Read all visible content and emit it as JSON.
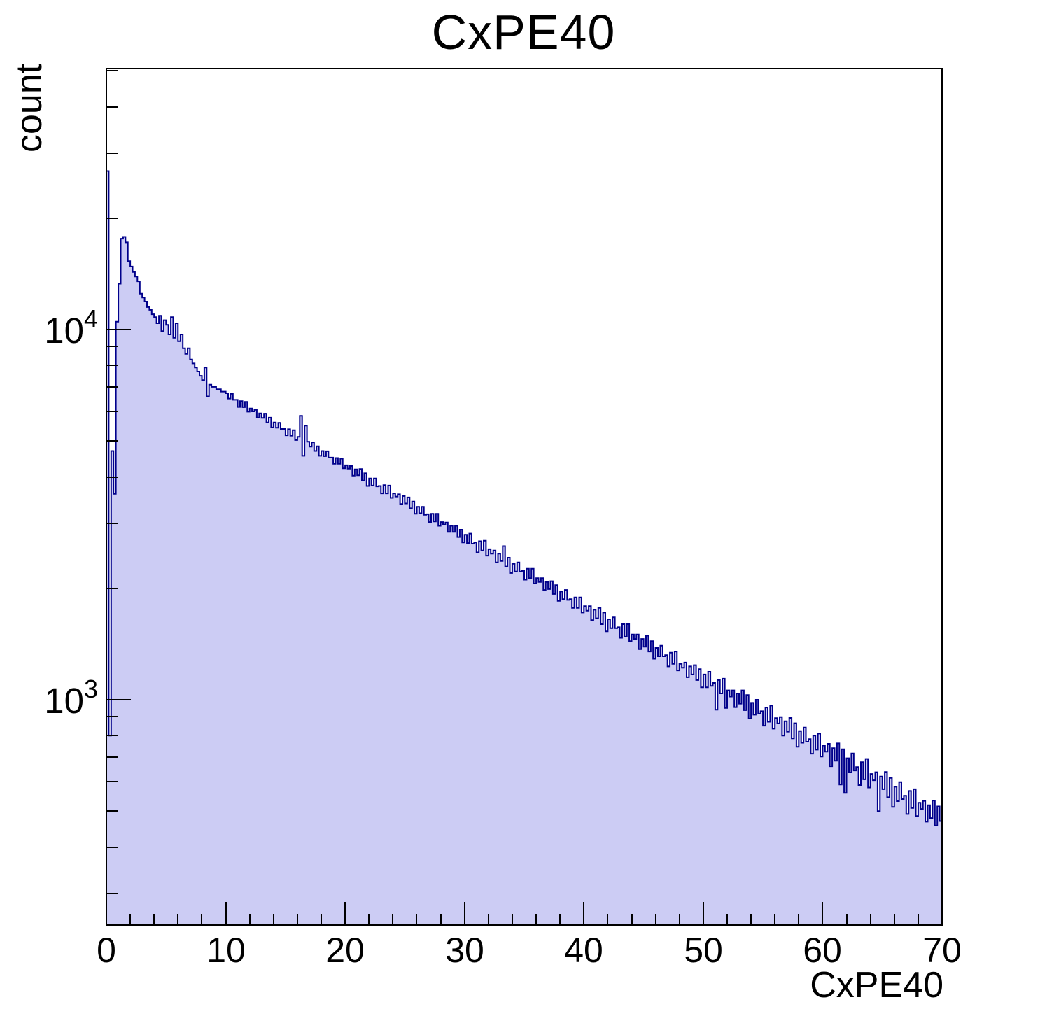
{
  "chart_data": {
    "type": "bar",
    "subtype": "histogram-step-filled",
    "title": "CxPE40",
    "xlabel": "CxPE40",
    "ylabel": "count",
    "legend": "none",
    "grid": "off",
    "x_start": 0,
    "bin_width": 0.2,
    "n_bins": 350,
    "xlim": [
      0,
      70
    ],
    "y_scale": "log",
    "ylim": [
      246,
      50700
    ],
    "x_major_ticks": [
      0,
      10,
      20,
      30,
      40,
      50,
      60,
      70
    ],
    "x_tick_labels": [
      "0",
      "10",
      "20",
      "30",
      "40",
      "50",
      "60",
      "70"
    ],
    "x_minor_tick_step": 2,
    "y_labeled_ticks": [
      1000,
      10000
    ],
    "y_tick_exponents": [
      3,
      4
    ],
    "fill_color": "#ccccf4",
    "line_color": "#00008b",
    "frame_color": "#000000",
    "bins": [
      26800,
      800,
      4700,
      3600,
      10500,
      13300,
      17600,
      17800,
      17200,
      15300,
      14800,
      14300,
      13900,
      13500,
      12500,
      12200,
      11900,
      11500,
      11300,
      11000,
      10800,
      10400,
      10900,
      9900,
      10600,
      10300,
      9700,
      10800,
      9500,
      10400,
      9300,
      9700,
      8900,
      8600,
      8900,
      8300,
      8100,
      7900,
      7700,
      7500,
      7300,
      7900,
      6600,
      7100,
      7000,
      7000,
      6900,
      6900,
      6800,
      6800,
      6730,
      6510,
      6710,
      6460,
      6460,
      6180,
      6410,
      6170,
      6380,
      6000,
      6120,
      6010,
      6070,
      5780,
      5940,
      5770,
      5930,
      5610,
      5780,
      5440,
      5610,
      5430,
      5600,
      5390,
      5390,
      5180,
      5380,
      5170,
      5350,
      5030,
      5130,
      5850,
      4560,
      5500,
      4980,
      4830,
      4960,
      4700,
      4840,
      4560,
      4700,
      4550,
      4690,
      4510,
      4510,
      4340,
      4500,
      4340,
      4480,
      4220,
      4300,
      4210,
      4280,
      4030,
      4190,
      4040,
      4200,
      3910,
      4090,
      3780,
      3960,
      3790,
      3960,
      3770,
      3780,
      3610,
      3800,
      3610,
      3790,
      3510,
      3610,
      3540,
      3590,
      3380,
      3550,
      3390,
      3520,
      3290,
      3430,
      3180,
      3320,
      3190,
      3320,
      3160,
      3170,
      3020,
      3180,
      3030,
      3180,
      2950,
      3020,
      2970,
      3010,
      2840,
      2950,
      2840,
      2950,
      2750,
      2880,
      2660,
      2790,
      2650,
      2810,
      2640,
      2660,
      2500,
      2680,
      2530,
      2690,
      2450,
      2550,
      2480,
      2530,
      2350,
      2480,
      2370,
      2600,
      2290,
      2420,
      2200,
      2330,
      2220,
      2350,
      2220,
      2230,
      2110,
      2260,
      2130,
      2260,
      2060,
      2130,
      2080,
      2130,
      1980,
      2080,
      1990,
      2090,
      1930,
      2040,
      1850,
      1960,
      1870,
      1980,
      1860,
      1870,
      1770,
      1890,
      1770,
      1890,
      1720,
      1790,
      1740,
      1790,
      1640,
      1750,
      1660,
      1770,
      1600,
      1720,
      1530,
      1650,
      1560,
      1670,
      1560,
      1570,
      1470,
      1600,
      1480,
      1600,
      1440,
      1500,
      1460,
      1500,
      1370,
      1460,
      1390,
      1490,
      1350,
      1440,
      1290,
      1380,
      1310,
      1400,
      1310,
      1320,
      1230,
      1340,
      1250,
      1350,
      1200,
      1250,
      1220,
      1260,
      1150,
      1230,
      1170,
      1240,
      1130,
      1210,
      1080,
      1170,
      1080,
      1190,
      1090,
      1110,
      940,
      1130,
      1040,
      1140,
      950,
      1060,
      1020,
      1060,
      955,
      1040,
      976,
      1060,
      937,
      1030,
      889,
      981,
      911,
      1000,
      917,
      931,
      851,
      953,
      872,
      964,
      835,
      892,
      863,
      898,
      800,
      875,
      820,
      893,
      786,
      864,
      746,
      823,
      765,
      841,
      770,
      783,
      715,
      800,
      733,
      810,
      702,
      752,
      724,
      760,
      661,
      740,
      684,
      762,
      590,
      735,
      560,
      695,
      636,
      716,
      644,
      658,
      588,
      678,
      609,
      692,
      579,
      630,
      606,
      637,
      500,
      620,
      573,
      638,
      545,
      615,
      513,
      582,
      532,
      599,
      539,
      550,
      491,
      567,
      510,
      573,
      485,
      527,
      507,
      533,
      468,
      519,
      479,
      534,
      457,
      515,
      470
    ]
  }
}
